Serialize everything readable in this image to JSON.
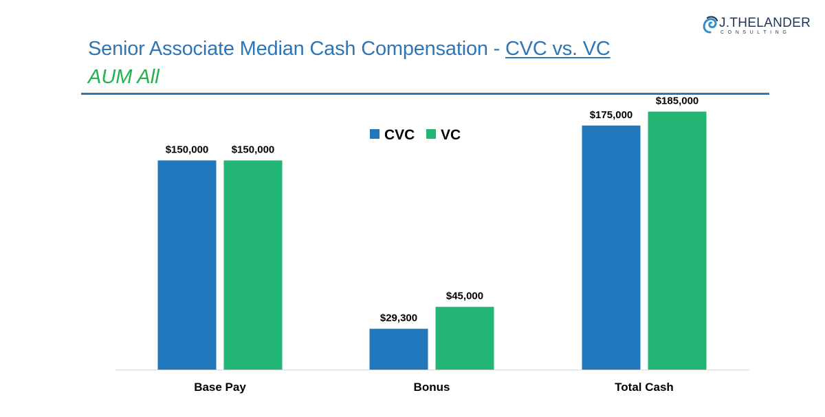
{
  "header": {
    "title_main": "Senior Associate Median Cash Compensation - ",
    "title_link": "CVC vs. VC",
    "subtitle": "AUM All"
  },
  "logo": {
    "icon": "spiral-swirl-icon",
    "name": "J.THELANDER",
    "tagline": "CONSULTING"
  },
  "colors": {
    "title": "#2e75b6",
    "subtitle": "#22b14c",
    "cvc": "#2077bb",
    "vc": "#22b573",
    "axis": "#d9d9d9"
  },
  "chart_data": {
    "type": "bar",
    "title": "",
    "xlabel": "",
    "ylabel": "",
    "categories": [
      "Base Pay",
      "Bonus",
      "Total Cash"
    ],
    "series": [
      {
        "name": "CVC",
        "values": [
          150000,
          29300,
          175000
        ],
        "labels": [
          "$150,000",
          "$29,300",
          "$175,000"
        ]
      },
      {
        "name": "VC",
        "values": [
          150000,
          45000,
          185000
        ],
        "labels": [
          "$150,000",
          "$45,000",
          "$185,000"
        ]
      }
    ],
    "ylim": [
      0,
      200000
    ],
    "grid": false,
    "legend": "top-center"
  }
}
